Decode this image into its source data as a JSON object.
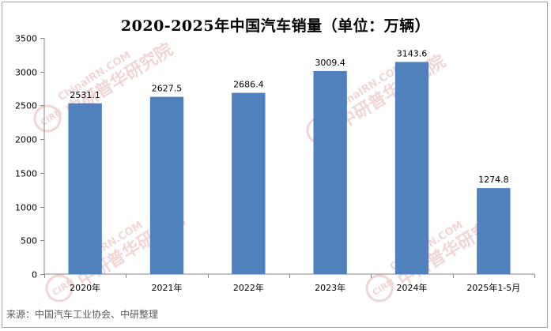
{
  "title": "2020-2025年中国汽车销量（单位：万辆）",
  "source": "来源：中国汽车工业协会、中研整理",
  "watermark": {
    "text": "ChinaIRN.COM",
    "brand": "中研普华研究院",
    "badge": "CIRN",
    "color": "#e8b4b4"
  },
  "chart_data": {
    "type": "bar",
    "title": "2020-2025年中国汽车销量（单位：万辆）",
    "categories": [
      "2020年",
      "2021年",
      "2022年",
      "2023年",
      "2024年",
      "2025年1-5月"
    ],
    "series": [
      {
        "values": [
          2531.1,
          2627.5,
          2686.4,
          3009.4,
          3143.6,
          1274.8
        ]
      }
    ],
    "data_labels": [
      "2531.1",
      "2627.5",
      "2686.4",
      "3009.4",
      "3143.6",
      "1274.8"
    ],
    "ylim": [
      0,
      3500
    ],
    "yticks": [
      0,
      500,
      1000,
      1500,
      2000,
      2500,
      3000,
      3500
    ],
    "bar_color": "#4f81bd",
    "grid": false,
    "legend": "none"
  }
}
